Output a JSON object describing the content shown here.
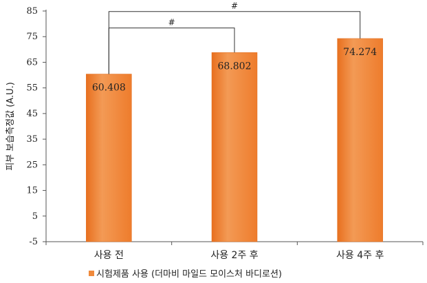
{
  "chart_data": {
    "type": "bar",
    "ylabel": "피부 보습측정값 (A.U.)",
    "ylim": [
      -5,
      85
    ],
    "yticks": [
      -5,
      5,
      15,
      25,
      35,
      45,
      55,
      65,
      75,
      85
    ],
    "categories": [
      "사용 전",
      "사용 2주 후",
      "사용 4주 후"
    ],
    "series": [
      {
        "name": "시험제품 사용 (더마비 마일드 모이스처 바디로션)",
        "values": [
          60.408,
          68.802,
          74.274
        ],
        "data_labels": [
          "60.408",
          "68.802",
          "74.274"
        ],
        "color": "#F08A3C"
      }
    ],
    "significance": [
      {
        "from": 0,
        "to": 1,
        "label": "#"
      },
      {
        "from": 0,
        "to": 2,
        "label": "#"
      }
    ],
    "grid": false,
    "legend_position": "bottom-center"
  }
}
